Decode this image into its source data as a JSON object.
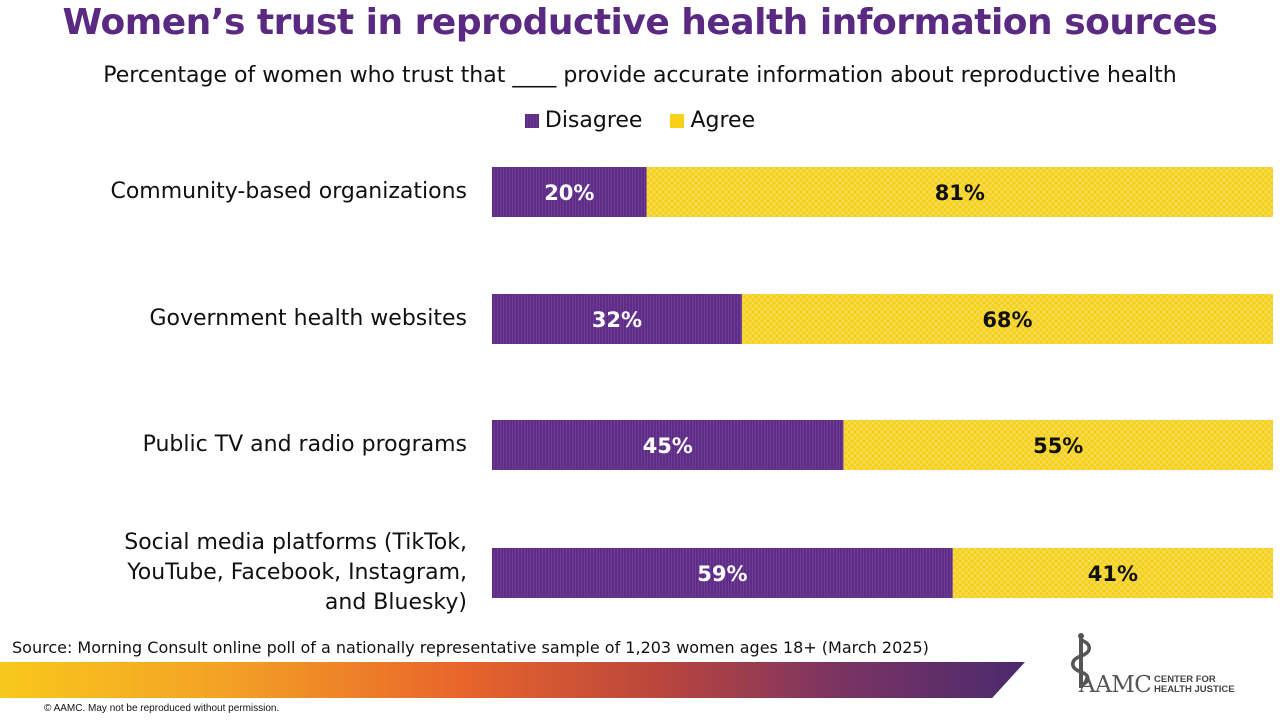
{
  "title": "Women’s trust in reproductive health information sources",
  "subtitle": "Percentage of women who trust that ____  provide accurate information about reproductive health",
  "source": "Source: Morning Consult online poll of a nationally representative sample of 1,203 women ages 18+ (March 2025)",
  "copyright": "© AAMC. May not be reproduced without permission.",
  "logo": {
    "name": "AAMC",
    "subtitle_line1": "CENTER FOR",
    "subtitle_line2": "HEALTH JUSTICE",
    "icon": "caduceus-icon"
  },
  "colors": {
    "disagree": "#5e2d86",
    "agree": "#f7d117",
    "title": "#5a2a82"
  },
  "chart_data": {
    "type": "bar",
    "orientation": "horizontal",
    "stacked": true,
    "title": "Women’s trust in reproductive health information sources",
    "subtitle": "Percentage of women who trust that ____  provide accurate information about reproductive health",
    "categories": [
      "Community-based organizations",
      "Government health websites",
      "Public TV and radio programs",
      "Social media platforms (TikTok, YouTube, Facebook, Instagram, and Bluesky)"
    ],
    "category_lines": [
      [
        "Community-based organizations"
      ],
      [
        "Government health websites"
      ],
      [
        "Public TV and radio programs"
      ],
      [
        "Social media platforms (TikTok,",
        "YouTube, Facebook, Instagram,",
        "and Bluesky)"
      ]
    ],
    "series": [
      {
        "name": "Disagree",
        "values": [
          20,
          32,
          45,
          59
        ],
        "labels": [
          "20%",
          "32%",
          "45%",
          "59%"
        ]
      },
      {
        "name": "Agree",
        "values": [
          81,
          68,
          55,
          41
        ],
        "labels": [
          "81%",
          "68%",
          "55%",
          "41%"
        ]
      }
    ],
    "legend": [
      "Disagree",
      "Agree"
    ],
    "legend_position": "top-center",
    "grid": false,
    "xlabel": "",
    "ylabel": ""
  }
}
